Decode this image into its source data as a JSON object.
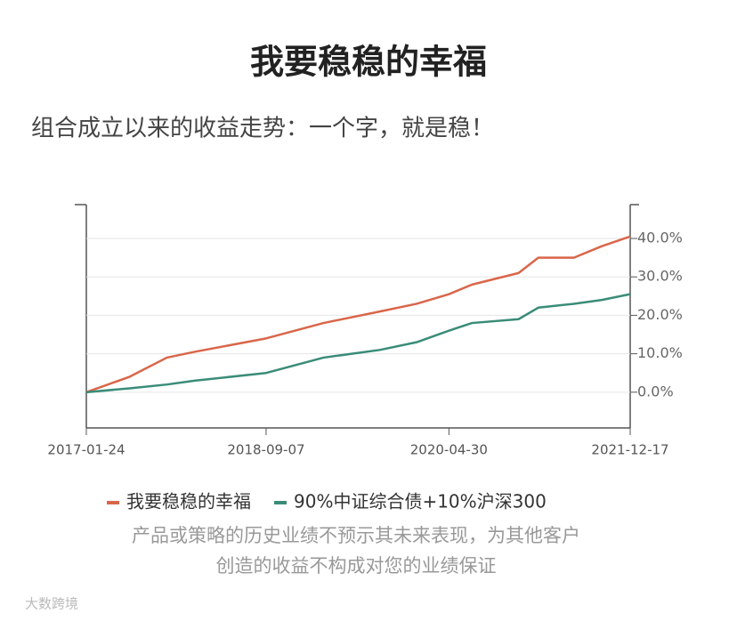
{
  "chart_data": {
    "type": "line",
    "title": "我要稳稳的幸福",
    "subtitle": "组合成立以来的收益走势：一个字，就是稳！",
    "x": [
      "2017-01-24",
      "2017-06-15",
      "2017-10-16",
      "2018-01-15",
      "2018-09-07",
      "2019-03-15",
      "2019-09-16",
      "2020-01-15",
      "2020-04-30",
      "2020-07-15",
      "2020-12-15",
      "2021-02-18",
      "2021-06-15",
      "2021-09-15",
      "2021-12-17"
    ],
    "series": [
      {
        "name": "我要稳稳的幸福",
        "color": "#d9664a",
        "values": [
          0,
          4,
          9,
          10.5,
          14,
          18,
          21,
          23,
          25.5,
          28,
          31,
          35,
          35,
          38,
          40.5
        ]
      },
      {
        "name": "90%中证综合债+10%沪深300",
        "color": "#3a8c78",
        "values": [
          0,
          1,
          2,
          3,
          5,
          9,
          11,
          13,
          16,
          18,
          19,
          22,
          23,
          24,
          25.5
        ]
      }
    ],
    "xlim": [
      "2017-01-24",
      "2021-12-17"
    ],
    "xticks": [
      "2017-01-24",
      "2018-09-07",
      "2020-04-30",
      "2021-12-17"
    ],
    "ylim": [
      -9.3,
      48.8
    ],
    "yticks": [
      {
        "value": 0,
        "label": "0.0%"
      },
      {
        "value": 10,
        "label": "10.0%"
      },
      {
        "value": 20,
        "label": "20.0%"
      },
      {
        "value": 30,
        "label": "30.0%"
      },
      {
        "value": 40,
        "label": "40.0%"
      }
    ],
    "grid": true,
    "footnote": [
      "产品或策略的历史业绩不预示其未来表现，为其他客户",
      "创造的收益不构成对您的业绩保证"
    ]
  },
  "watermark": "大数跨境"
}
